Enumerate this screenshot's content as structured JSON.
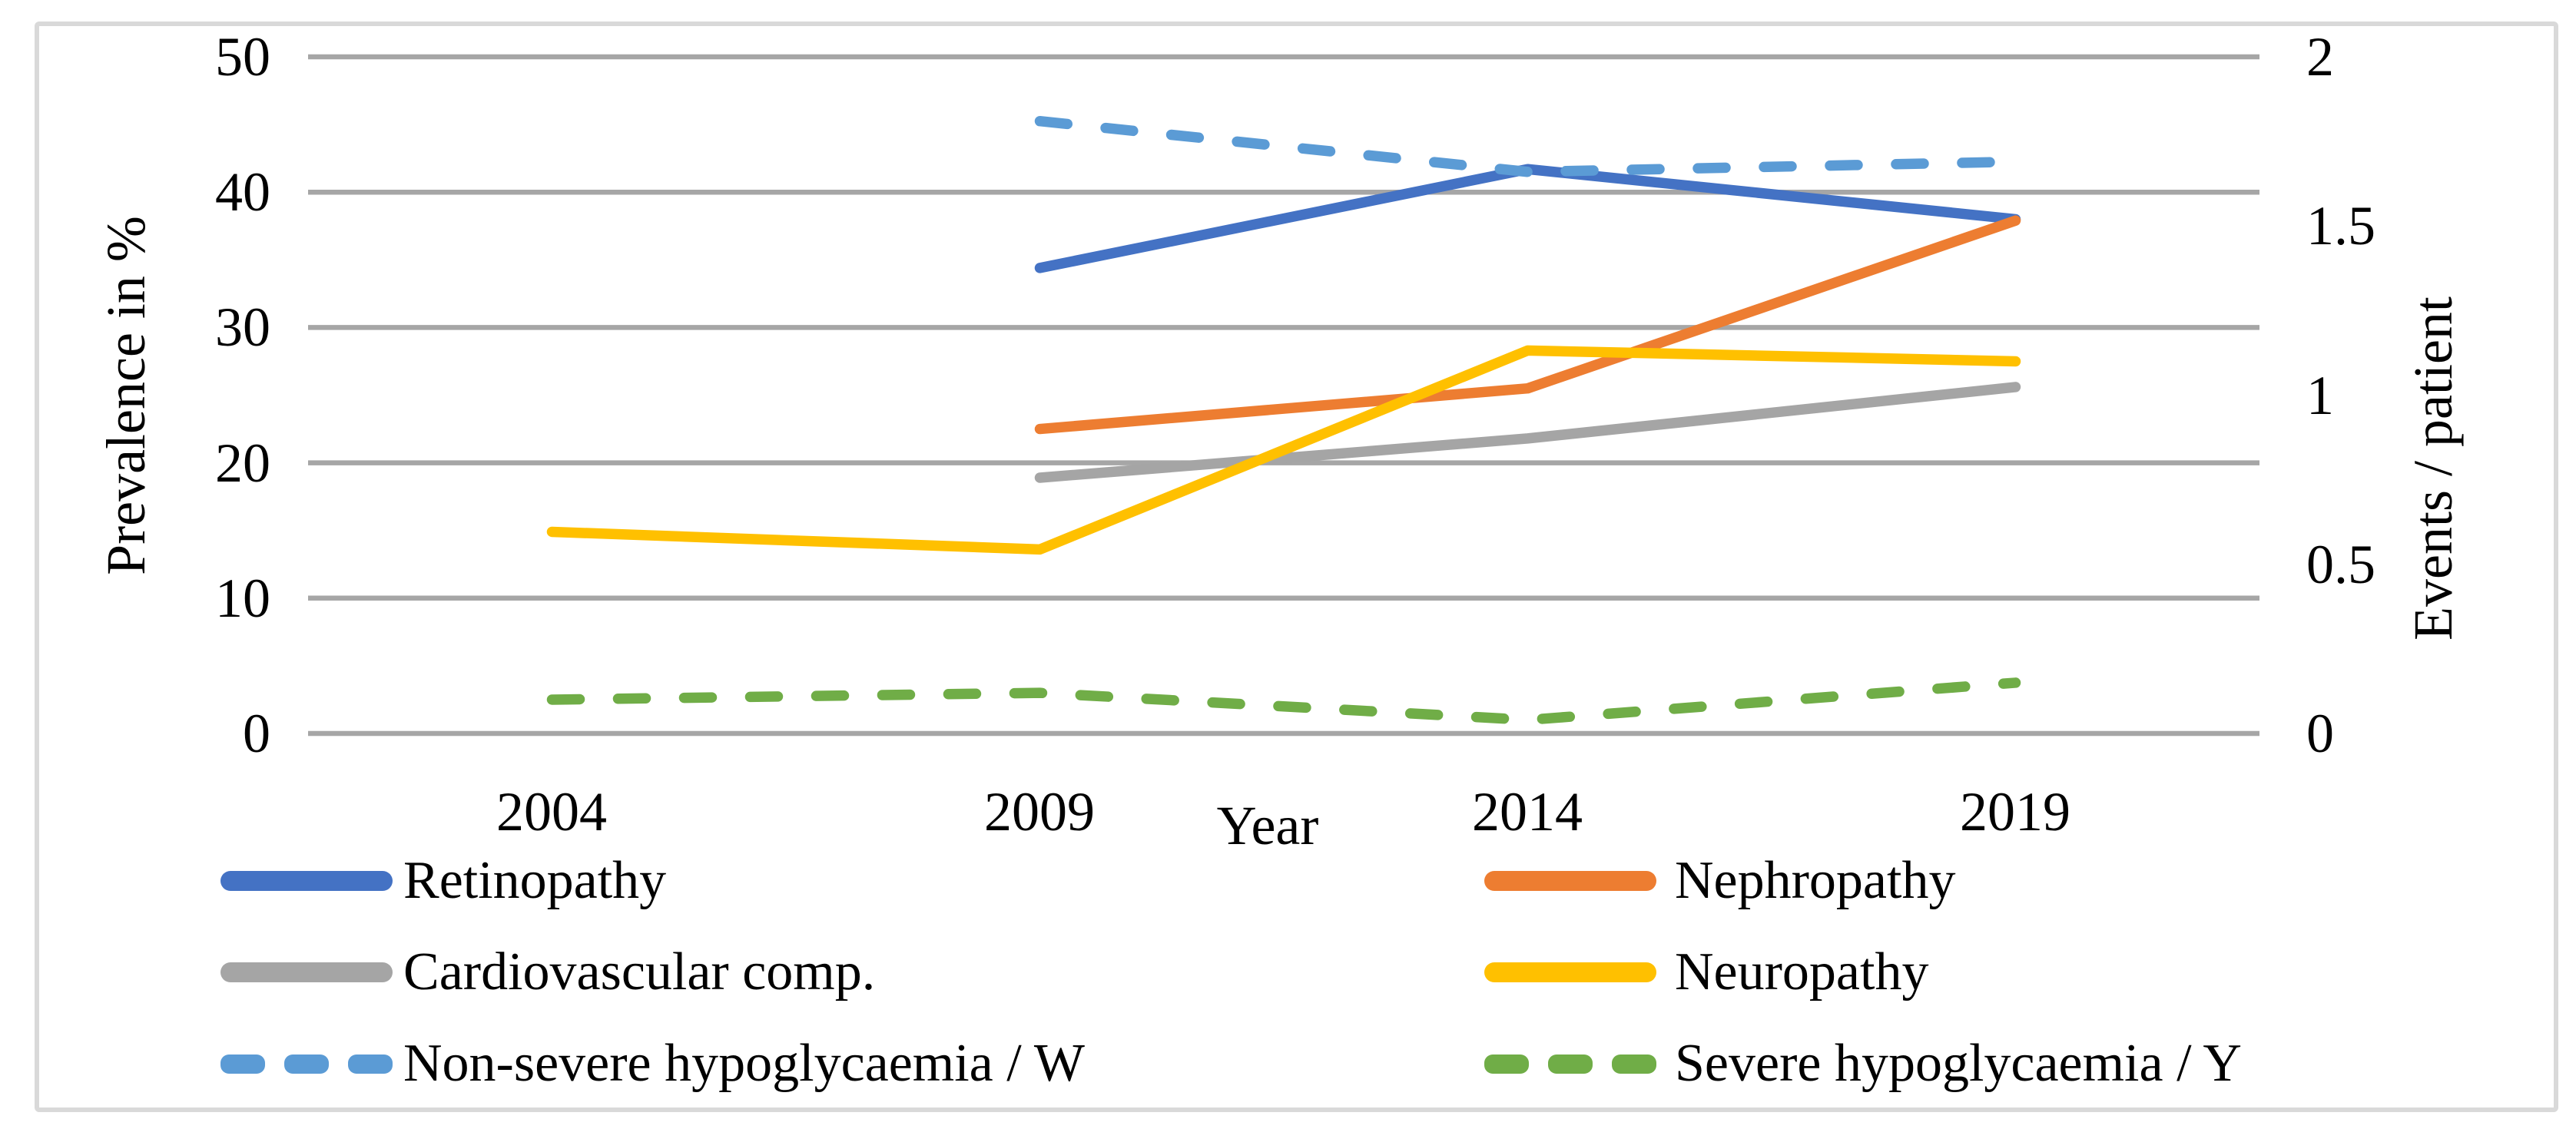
{
  "figure": {
    "background": "#FFFFFF",
    "border_color": "#D9D9D9",
    "grid_color": "#A6A6A6"
  },
  "chart_data": {
    "type": "line",
    "x_categories": [
      "2004",
      "2009",
      "2014",
      "2019"
    ],
    "xlabel": "Year",
    "grid": "horizontal",
    "legend_position": "bottom, two columns",
    "left_axis": {
      "label": "Prevalence in %",
      "range": [
        0,
        50
      ],
      "ticks": [
        0,
        10,
        20,
        30,
        40,
        50
      ],
      "tick_labels": [
        "0",
        "10",
        "20",
        "30",
        "40",
        "50"
      ]
    },
    "right_axis": {
      "label": "Events / patient",
      "range": [
        0,
        2
      ],
      "ticks": [
        0,
        0.5,
        1,
        1.5,
        2
      ],
      "tick_labels": [
        "0",
        "0.5",
        "1",
        "1.5",
        "2"
      ]
    },
    "series": [
      {
        "name": "Retinopathy",
        "axis": "left",
        "style": "solid",
        "color": "#4472C4",
        "values": [
          null,
          34.4,
          41.7,
          38.0
        ]
      },
      {
        "name": "Nephropathy",
        "axis": "left",
        "style": "solid",
        "color": "#ED7D31",
        "values": [
          null,
          22.5,
          25.5,
          37.9
        ]
      },
      {
        "name": "Cardiovascular comp.",
        "axis": "left",
        "style": "solid",
        "color": "#A5A5A5",
        "values": [
          null,
          18.9,
          21.8,
          25.6
        ]
      },
      {
        "name": "Neuropathy",
        "axis": "left",
        "style": "solid",
        "color": "#FFC000",
        "values": [
          14.9,
          13.6,
          28.3,
          27.5
        ]
      },
      {
        "name": "Non-severe hypoglycaemia / W",
        "axis": "right",
        "style": "dashed",
        "color": "#5B9BD5",
        "values": [
          null,
          1.81,
          1.66,
          1.69
        ]
      },
      {
        "name": "Severe hypoglycaemia / Y",
        "axis": "right",
        "style": "dashed",
        "color": "#70AD47",
        "values": [
          0.1,
          0.12,
          0.04,
          0.15
        ]
      }
    ]
  }
}
